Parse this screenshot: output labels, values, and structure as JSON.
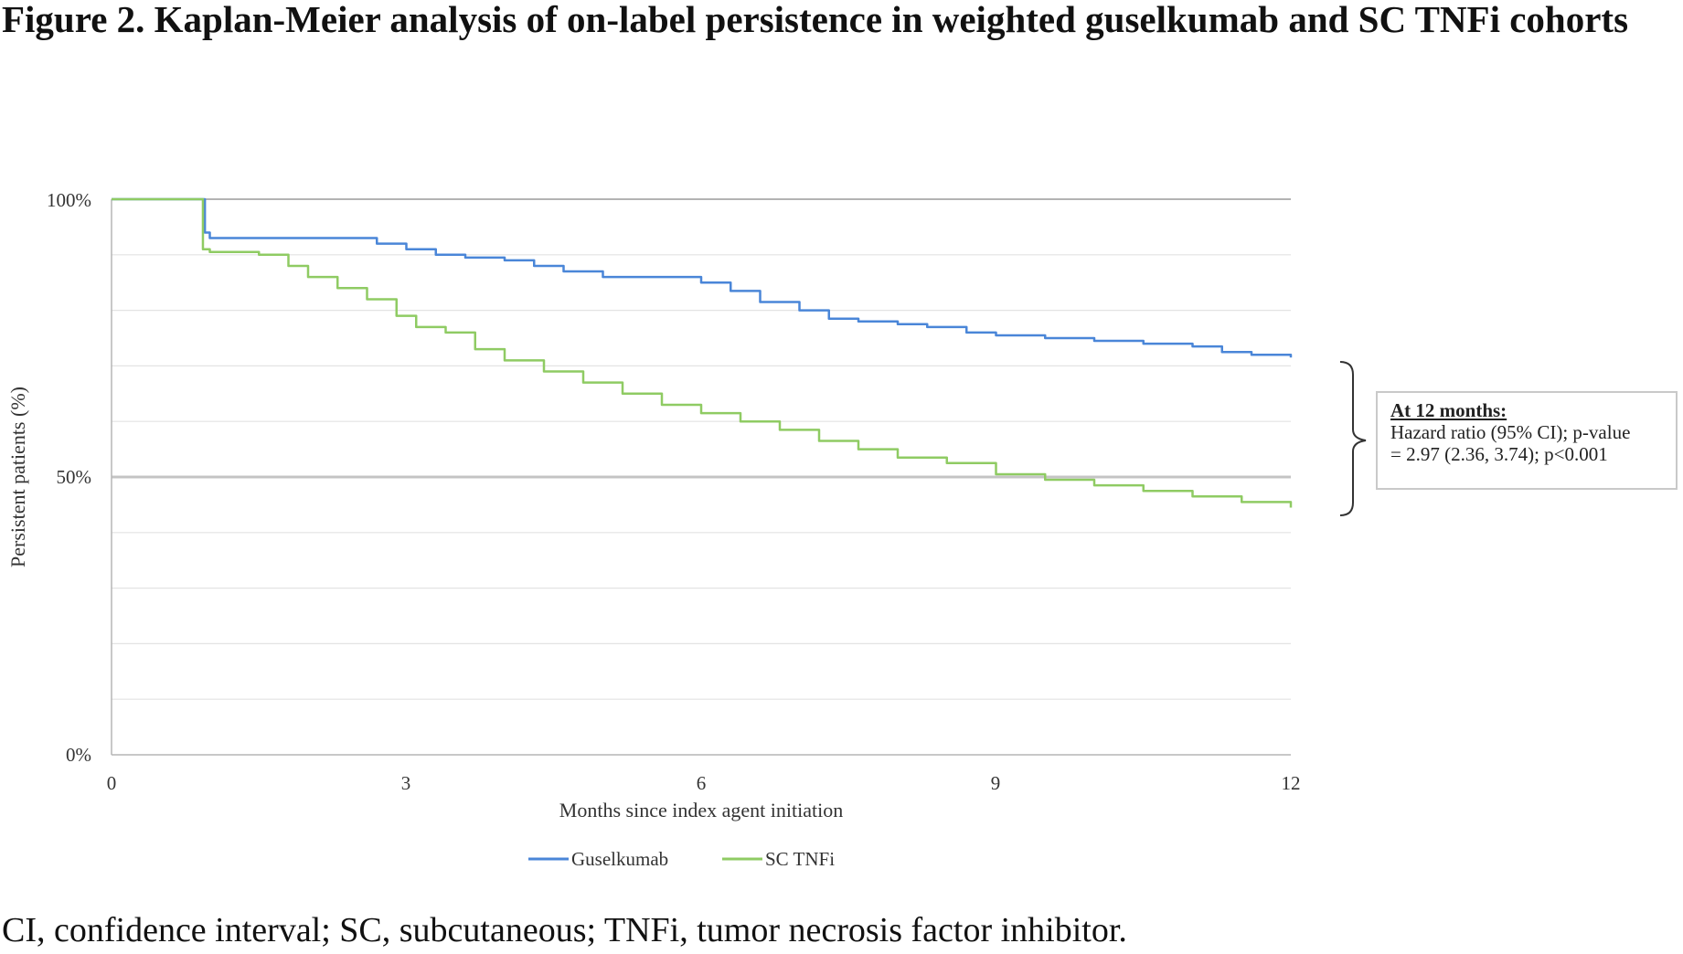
{
  "figure": {
    "title": "Figure 2. Kaplan-Meier analysis of on-label persistence in weighted guselkumab and SC TNFi cohorts",
    "footnote": "CI, confidence interval; SC, subcutaneous; TNFi, tumor necrosis factor inhibitor."
  },
  "annotation": {
    "heading": "At 12 months:",
    "line1": "Hazard ratio (95% CI); p-value",
    "line2": "= 2.97 (2.36, 3.74); p<0.001"
  },
  "colors": {
    "guselkumab": "#4a86d8",
    "sc_tnfi": "#8fcb63",
    "grid": "#e3e3e3",
    "ref50": "#c4c4c4",
    "ref100": "#a8a8a8"
  },
  "chart_data": {
    "type": "line",
    "title": "",
    "xlabel": "Months since index agent initiation",
    "ylabel": "Persistent patients (%)",
    "xlim": [
      0,
      12
    ],
    "ylim": [
      0,
      100
    ],
    "x_ticks": [
      "0",
      "3",
      "6",
      "9",
      "12"
    ],
    "y_ticks": [
      "0%",
      "50%",
      "100%"
    ],
    "legend_position": "bottom",
    "step": true,
    "series": [
      {
        "name": "Guselkumab",
        "points": [
          [
            0,
            100
          ],
          [
            0.9,
            100
          ],
          [
            0.95,
            94
          ],
          [
            1.0,
            93
          ],
          [
            2.5,
            93
          ],
          [
            2.7,
            92
          ],
          [
            3.0,
            91
          ],
          [
            3.3,
            90
          ],
          [
            3.6,
            89.5
          ],
          [
            4.0,
            89
          ],
          [
            4.3,
            88
          ],
          [
            4.6,
            87
          ],
          [
            5.0,
            86
          ],
          [
            5.5,
            86
          ],
          [
            6.0,
            85
          ],
          [
            6.3,
            83.5
          ],
          [
            6.6,
            81.5
          ],
          [
            7.0,
            80
          ],
          [
            7.3,
            78.5
          ],
          [
            7.6,
            78
          ],
          [
            8.0,
            77.5
          ],
          [
            8.3,
            77
          ],
          [
            8.7,
            76
          ],
          [
            9.0,
            75.5
          ],
          [
            9.5,
            75
          ],
          [
            10.0,
            74.5
          ],
          [
            10.5,
            74
          ],
          [
            11.0,
            73.5
          ],
          [
            11.3,
            72.5
          ],
          [
            11.6,
            72
          ],
          [
            12.0,
            71.5
          ]
        ]
      },
      {
        "name": "SC TNFi",
        "points": [
          [
            0,
            100
          ],
          [
            0.9,
            100
          ],
          [
            0.93,
            91
          ],
          [
            1.0,
            90.5
          ],
          [
            1.5,
            90
          ],
          [
            1.8,
            88
          ],
          [
            2.0,
            86
          ],
          [
            2.3,
            84
          ],
          [
            2.6,
            82
          ],
          [
            2.9,
            79
          ],
          [
            3.1,
            77
          ],
          [
            3.4,
            76
          ],
          [
            3.7,
            73
          ],
          [
            4.0,
            71
          ],
          [
            4.4,
            69
          ],
          [
            4.8,
            67
          ],
          [
            5.2,
            65
          ],
          [
            5.6,
            63
          ],
          [
            6.0,
            61.5
          ],
          [
            6.4,
            60
          ],
          [
            6.8,
            58.5
          ],
          [
            7.2,
            56.5
          ],
          [
            7.6,
            55
          ],
          [
            8.0,
            53.5
          ],
          [
            8.5,
            52.5
          ],
          [
            9.0,
            50.5
          ],
          [
            9.5,
            49.5
          ],
          [
            10.0,
            48.5
          ],
          [
            10.5,
            47.5
          ],
          [
            11.0,
            46.5
          ],
          [
            11.5,
            45.5
          ],
          [
            12.0,
            44.5
          ]
        ]
      }
    ]
  }
}
